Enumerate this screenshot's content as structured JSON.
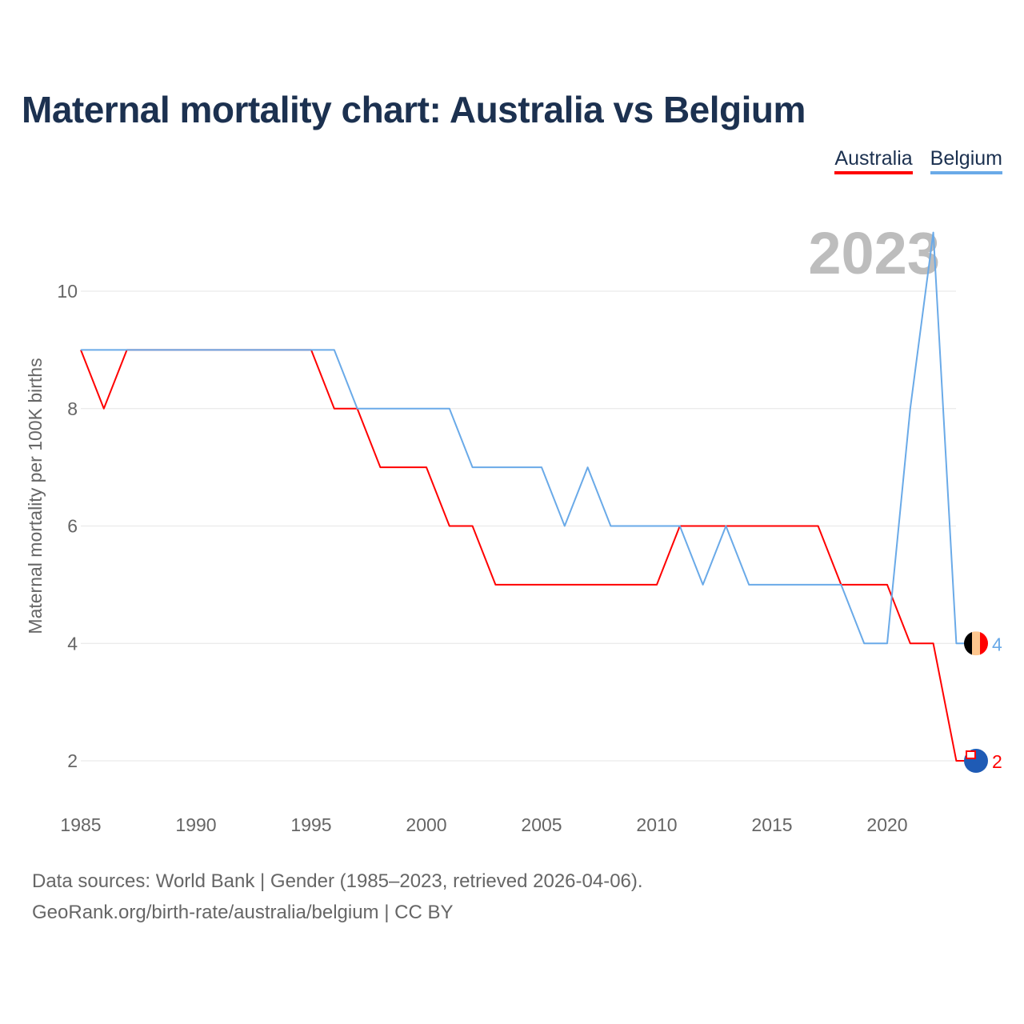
{
  "chart_data": {
    "type": "line",
    "title": "Maternal mortality chart: Australia vs Belgium",
    "xlabel": "",
    "ylabel": "Maternal mortality per 100K births",
    "x": [
      1985,
      1986,
      1987,
      1988,
      1989,
      1990,
      1991,
      1992,
      1993,
      1994,
      1995,
      1996,
      1997,
      1998,
      1999,
      2000,
      2001,
      2002,
      2003,
      2004,
      2005,
      2006,
      2007,
      2008,
      2009,
      2010,
      2011,
      2012,
      2013,
      2014,
      2015,
      2016,
      2017,
      2018,
      2019,
      2020,
      2021,
      2022,
      2023
    ],
    "xlim": [
      1985,
      2023
    ],
    "ylim": [
      1,
      11.5
    ],
    "xticks": [
      1985,
      1990,
      1995,
      2000,
      2005,
      2010,
      2015,
      2020
    ],
    "yticks": [
      2,
      4,
      6,
      8,
      10
    ],
    "grid": true,
    "legend_position": "top-right",
    "year_annotation": "2023",
    "series": [
      {
        "name": "Australia",
        "color": "#ff0000",
        "end_label": "2",
        "values": [
          9,
          8,
          9,
          9,
          9,
          9,
          9,
          9,
          9,
          9,
          9,
          8,
          8,
          7,
          7,
          7,
          6,
          6,
          5,
          5,
          5,
          5,
          5,
          5,
          5,
          5,
          6,
          6,
          6,
          6,
          6,
          6,
          6,
          5,
          5,
          5,
          4,
          4,
          2
        ]
      },
      {
        "name": "Belgium",
        "color": "#6aaae8",
        "end_label": "4",
        "values": [
          9,
          9,
          9,
          9,
          9,
          9,
          9,
          9,
          9,
          9,
          9,
          9,
          8,
          8,
          8,
          8,
          8,
          7,
          7,
          7,
          7,
          6,
          7,
          6,
          6,
          6,
          6,
          5,
          6,
          5,
          5,
          5,
          5,
          5,
          4,
          4,
          8,
          11,
          4
        ]
      }
    ]
  },
  "footer": {
    "line1": "Data sources: World Bank | Gender (1985–2023, retrieved 2026-04-06).",
    "line2": "GeoRank.org/birth-rate/australia/belgium | CC BY"
  }
}
